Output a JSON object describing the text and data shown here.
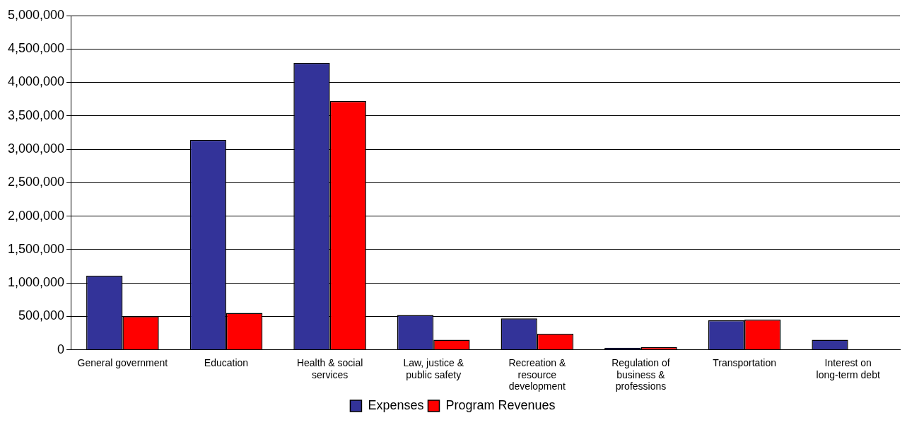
{
  "chart_data": {
    "type": "bar",
    "categories": [
      "General government",
      "Education",
      "Health & social services",
      "Law, justice & public safety",
      "Recreation & resource development",
      "Regulation of business & professions",
      "Transportation",
      "Interest on long-term debt"
    ],
    "series": [
      {
        "name": "Expenses",
        "color": "#333399",
        "values": [
          1110000,
          3140000,
          4290000,
          520000,
          470000,
          30000,
          440000,
          150000
        ]
      },
      {
        "name": "Program Revenues",
        "color": "#ff0000",
        "values": [
          500000,
          550000,
          3720000,
          150000,
          240000,
          40000,
          450000,
          0
        ]
      }
    ],
    "ylim": [
      0,
      5000000
    ],
    "yticks": [
      0,
      {
        "value": 500000,
        "label": "500,000"
      },
      {
        "value": 1000000,
        "label": "1,000,000"
      },
      {
        "value": 1500000,
        "label": "1,500,000"
      },
      {
        "value": 2000000,
        "label": "2,000,000"
      },
      {
        "value": 2500000,
        "label": "2,500,000"
      },
      {
        "value": 3000000,
        "label": "3,000,000"
      },
      {
        "value": 3500000,
        "label": "3,500,000"
      },
      {
        "value": 4000000,
        "label": "4,000,000"
      },
      {
        "value": 4500000,
        "label": "4,500,000"
      },
      {
        "value": 5000000,
        "label": "5,000,000"
      }
    ],
    "grid": "y",
    "legend": "bottom"
  }
}
